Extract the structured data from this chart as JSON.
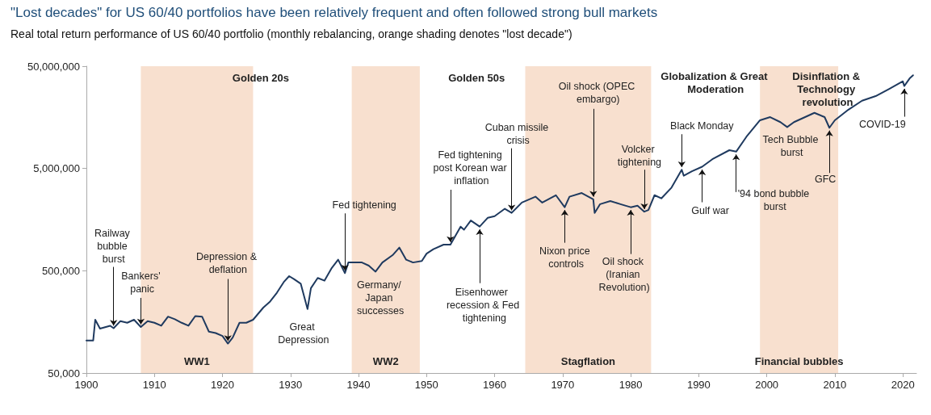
{
  "chart_data": {
    "type": "line",
    "title": "\"Lost decades\" for US 60/40 portfolios have been relatively frequent and often followed strong bull markets",
    "subtitle": "Real total return performance of US 60/40 portfolio (monthly rebalancing, orange shading denotes \"lost decade\")",
    "log": true,
    "grid": false,
    "marker": "none",
    "line_style": "solid",
    "xlim": [
      1900,
      2022
    ],
    "xticks": [
      1900,
      1910,
      1920,
      1930,
      1940,
      1950,
      1960,
      1970,
      1980,
      1990,
      2000,
      2010,
      2020
    ],
    "ylim": [
      50000,
      50000000
    ],
    "yticks": [
      {
        "value": 50000,
        "label": "50,000"
      },
      {
        "value": 500000,
        "label": "500,000"
      },
      {
        "value": 5000000,
        "label": "5,000,000"
      },
      {
        "value": 50000000,
        "label": "50,000,000"
      }
    ],
    "series": [
      {
        "color": "#1f3a5f",
        "x": [
          1900,
          1901,
          1901.3,
          1902,
          1903.5,
          1904,
          1905,
          1906,
          1907,
          1908,
          1909,
          1910,
          1911,
          1912,
          1913,
          1914,
          1915,
          1916,
          1917,
          1918,
          1919,
          1920,
          1920.8,
          1921.5,
          1922.5,
          1923.5,
          1924.5,
          1926,
          1927,
          1928,
          1929,
          1929.8,
          1930.5,
          1931.5,
          1932.5,
          1933,
          1934,
          1935,
          1936,
          1937,
          1938,
          1938.5,
          1939.5,
          1940.5,
          1941.5,
          1942.5,
          1943.5,
          1945,
          1946,
          1947,
          1948,
          1949.3,
          1950,
          1951,
          1952.5,
          1953.5,
          1955,
          1955.5,
          1956.5,
          1957.8,
          1959,
          1960,
          1961.5,
          1962.5,
          1964,
          1966,
          1967,
          1969,
          1970.3,
          1971,
          1972.8,
          1974.5,
          1974.7,
          1975.5,
          1977,
          1978.5,
          1980,
          1981,
          1982,
          1982.6,
          1983.5,
          1984.5,
          1986,
          1987.5,
          1987.8,
          1989,
          1990.5,
          1992,
          1994.5,
          1995.5,
          1997,
          1999,
          2000.5,
          2002,
          2003,
          2004,
          2007,
          2008.5,
          2009.2,
          2010,
          2012,
          2014,
          2016,
          2018,
          2020,
          2020.2,
          2021,
          2021.5
        ],
        "values": [
          104000,
          104000,
          166000,
          136000,
          145000,
          137000,
          161000,
          155000,
          166000,
          141000,
          161000,
          155000,
          145000,
          178000,
          168000,
          155000,
          145000,
          180000,
          178000,
          127000,
          123000,
          115000,
          97000,
          111000,
          155000,
          155000,
          166000,
          218000,
          250000,
          305000,
          387000,
          443000,
          415000,
          374000,
          211000,
          338000,
          425000,
          400000,
          525000,
          641000,
          474000,
          602000,
          602000,
          602000,
          561000,
          490000,
          602000,
          710000,
          842000,
          641000,
          602000,
          622000,
          735000,
          813000,
          900000,
          900000,
          1350000,
          1260000,
          1550000,
          1350000,
          1650000,
          1710000,
          2020000,
          1840000,
          2320000,
          2650000,
          2320000,
          2740000,
          2090000,
          2650000,
          2880000,
          2500000,
          1840000,
          2240000,
          2400000,
          2240000,
          2090000,
          2160000,
          1890000,
          1960000,
          2740000,
          2550000,
          3250000,
          4860000,
          4250000,
          4700000,
          5200000,
          6160000,
          7550000,
          7300000,
          10200000,
          14800000,
          15900000,
          14200000,
          12700000,
          14200000,
          17500000,
          15900000,
          12500000,
          14800000,
          18800000,
          23000000,
          25500000,
          30000000,
          35600000,
          32000000,
          38000000,
          40800000
        ]
      }
    ],
    "bands": [
      {
        "axis": "x",
        "from": 1908,
        "to": 1924.5,
        "label": "WW1",
        "color": "#f8e0cf"
      },
      {
        "axis": "x",
        "from": 1939,
        "to": 1949,
        "label": "WW2",
        "color": "#f8e0cf"
      },
      {
        "axis": "x",
        "from": 1964.5,
        "to": 1983,
        "label": "Stagflation",
        "color": "#f8e0cf"
      },
      {
        "axis": "x",
        "from": 1999,
        "to": 2010.5,
        "label": "Financial bubbles",
        "color": "#f8e0cf"
      }
    ],
    "annotations": [
      "Golden 20s",
      "Golden 50s",
      "Globalization & Great Moderation",
      "Disinflation & Technology revolution",
      {
        "text": "Railway bubble burst",
        "x": 1904,
        "y": 137000
      },
      {
        "text": "Bankers' panic",
        "x": 1908,
        "y": 141000
      },
      {
        "text": "Depression & deflation",
        "x": 1920.8,
        "y": 97000
      },
      {
        "text": "Great Depression",
        "x": 1932.5,
        "y": 211000
      },
      {
        "text": "Fed tightening",
        "x": 1938,
        "y": 474000
      },
      {
        "text": "Germany/ Japan successes",
        "x": 1942.5,
        "y": 490000
      },
      {
        "text": "Fed tightening post Korean war inflation",
        "x": 1953.5,
        "y": 900000
      },
      {
        "text": "Eisenhower recession & Fed tightening",
        "x": 1957.8,
        "y": 1350000
      },
      {
        "text": "Cuban missile crisis",
        "x": 1962.5,
        "y": 1840000
      },
      {
        "text": "Oil shock (OPEC embargo)",
        "x": 1974.5,
        "y": 2500000
      },
      {
        "text": "Nixon price controls",
        "x": 1970.3,
        "y": 2090000
      },
      {
        "text": "Oil shock (Iranian Revolution)",
        "x": 1980,
        "y": 2090000
      },
      {
        "text": "Volcker tightening",
        "x": 1982,
        "y": 1890000
      },
      {
        "text": "Black Monday",
        "x": 1987.5,
        "y": 4860000
      },
      {
        "text": "Gulf war",
        "x": 1990.5,
        "y": 5200000
      },
      {
        "text": "'94 bond bubble burst",
        "x": 1995.5,
        "y": 7300000
      },
      {
        "text": "Tech Bubble burst",
        "x": 2002.5,
        "y": 13000000
      },
      {
        "text": "GFC",
        "x": 2009.2,
        "y": 12500000
      },
      {
        "text": "COVID-19",
        "x": 2020.2,
        "y": 32000000
      }
    ]
  }
}
